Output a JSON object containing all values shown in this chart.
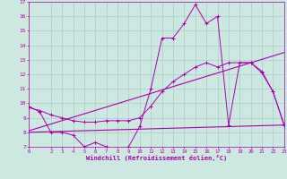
{
  "xlabel": "Windchill (Refroidissement éolien,°C)",
  "background_color": "#cce8e0",
  "grid_color": "#aacccc",
  "line_color": "#aa00aa",
  "xlim": [
    0,
    23
  ],
  "ylim": [
    7,
    17
  ],
  "yticks": [
    7,
    8,
    9,
    10,
    11,
    12,
    13,
    14,
    15,
    16,
    17
  ],
  "xticks": [
    0,
    2,
    3,
    4,
    5,
    6,
    7,
    8,
    9,
    10,
    11,
    12,
    13,
    14,
    15,
    16,
    17,
    18,
    19,
    20,
    21,
    22,
    23
  ],
  "series1_x": [
    0,
    1,
    2,
    3,
    4,
    5,
    6,
    7,
    8,
    9,
    10,
    11,
    12,
    13,
    14,
    15,
    16,
    17,
    18,
    19,
    20,
    21,
    22,
    23
  ],
  "series1_y": [
    9.8,
    9.4,
    8.0,
    8.0,
    7.8,
    7.0,
    7.3,
    7.0,
    6.8,
    7.0,
    8.4,
    11.0,
    14.5,
    14.5,
    15.5,
    16.8,
    15.5,
    16.0,
    8.5,
    12.8,
    12.8,
    12.1,
    10.8,
    8.5
  ],
  "series2_x": [
    0,
    23
  ],
  "series2_y": [
    8.1,
    13.5
  ],
  "series3_x": [
    0,
    23
  ],
  "series3_y": [
    8.0,
    8.5
  ],
  "series4_x": [
    0,
    1,
    2,
    3,
    4,
    5,
    6,
    7,
    8,
    9,
    10,
    11,
    12,
    13,
    14,
    15,
    16,
    17,
    18,
    19,
    20,
    21,
    22,
    23
  ],
  "series4_y": [
    9.7,
    9.5,
    9.2,
    9.0,
    8.8,
    8.7,
    8.7,
    8.8,
    8.8,
    8.8,
    9.0,
    9.8,
    10.8,
    11.5,
    12.0,
    12.5,
    12.8,
    12.5,
    12.8,
    12.8,
    12.8,
    12.2,
    10.8,
    8.5
  ]
}
